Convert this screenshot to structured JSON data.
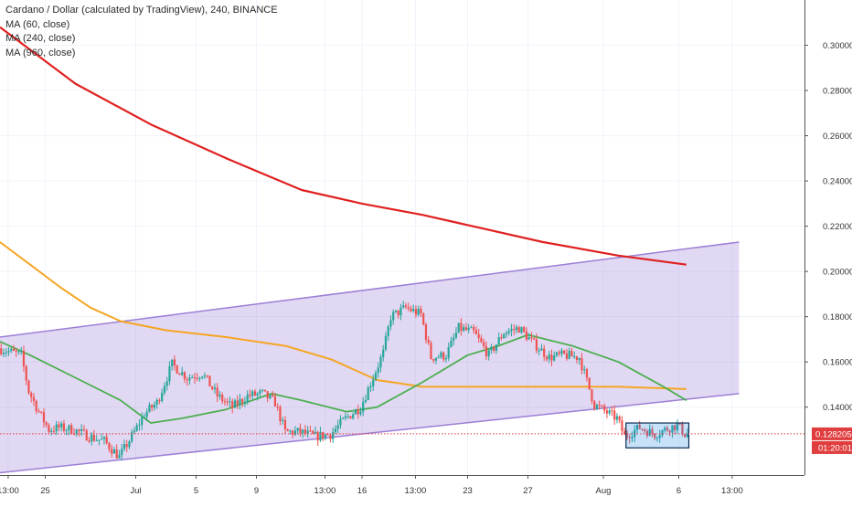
{
  "header": {
    "title": "Cardano / Dollar (calculated by TradingView), 240, BINANCE"
  },
  "chart_data": {
    "type": "candlestick",
    "symbol": "Cardano / Dollar",
    "interval": "240",
    "exchange": "BINANCE",
    "y_axis": {
      "range": [
        0.11,
        0.32
      ],
      "ticks": [
        0.14,
        0.16,
        0.18,
        0.2,
        0.22,
        0.24,
        0.26,
        0.28,
        0.3
      ],
      "tick_labels": [
        "0.140000",
        "0.160000",
        "0.180000",
        "0.200000",
        "0.220000",
        "0.240000",
        "0.260000",
        "0.280000",
        "0.300000"
      ]
    },
    "x_axis": {
      "range": [
        "Jun 22 00:00",
        "Aug 11 00:00"
      ],
      "ticks": [
        "Jun 22 13:00",
        "Jun 25",
        "Jul 1",
        "Jul 5",
        "Jul 9",
        "Jul 13 13:00",
        "Jul 16",
        "Jul 19 13:00",
        "Jul 23",
        "Jul 27",
        "Aug 1",
        "Aug 6",
        "Aug 9 13:00"
      ],
      "tick_labels": [
        "13:00",
        "25",
        "Jul",
        "5",
        "9",
        "13:00",
        "16",
        "13:00",
        "23",
        "27",
        "Aug",
        "6",
        "13:00"
      ]
    },
    "last_price": {
      "label": "0.128205",
      "countdown": "01:20:01",
      "value": 0.128205,
      "color": "#e03e3e"
    },
    "candle_colors": {
      "up": "#26a69a",
      "down": "#ef5350"
    },
    "indicators": [
      {
        "name": "MA (60, close)",
        "color": "#4caf50"
      },
      {
        "name": "MA (240, close)",
        "color": "#f5a623"
      },
      {
        "name": "MA (960, close)",
        "color": "#e02020"
      }
    ],
    "ma_960": [
      [
        "Jun 22 00:00",
        0.308
      ],
      [
        "Jun 27 00:00",
        0.283
      ],
      [
        "Jul 2 00:00",
        0.265
      ],
      [
        "Jul 7 00:00",
        0.25
      ],
      [
        "Jul 12 00:00",
        0.236
      ],
      [
        "Jul 16 00:00",
        0.23
      ],
      [
        "Jul 20 00:00",
        0.225
      ],
      [
        "Jul 24 00:00",
        0.219
      ],
      [
        "Jul 28 00:00",
        0.213
      ],
      [
        "Aug 2 00:00",
        0.207
      ],
      [
        "Aug 6 12:00",
        0.203
      ]
    ],
    "ma_240": [
      [
        "Jun 22 00:00",
        0.213
      ],
      [
        "Jun 24 00:00",
        0.203
      ],
      [
        "Jun 26 00:00",
        0.193
      ],
      [
        "Jun 28 00:00",
        0.184
      ],
      [
        "Jun 30 00:00",
        0.178
      ],
      [
        "Jul 3 00:00",
        0.174
      ],
      [
        "Jul 7 00:00",
        0.171
      ],
      [
        "Jul 11 00:00",
        0.167
      ],
      [
        "Jul 14 00:00",
        0.161
      ],
      [
        "Jul 17 00:00",
        0.152
      ],
      [
        "Jul 20 00:00",
        0.149
      ],
      [
        "Jul 26 00:00",
        0.149
      ],
      [
        "Aug 2 00:00",
        0.149
      ],
      [
        "Aug 6 12:00",
        0.148
      ]
    ],
    "ma_60": [
      [
        "Jun 22 00:00",
        0.169
      ],
      [
        "Jun 24 00:00",
        0.163
      ],
      [
        "Jun 27 00:00",
        0.153
      ],
      [
        "Jun 30 00:00",
        0.143
      ],
      [
        "Jul 2 00:00",
        0.133
      ],
      [
        "Jul 4 00:00",
        0.135
      ],
      [
        "Jul 7 00:00",
        0.139
      ],
      [
        "Jul 10 00:00",
        0.146
      ],
      [
        "Jul 12 00:00",
        0.143
      ],
      [
        "Jul 15 00:00",
        0.138
      ],
      [
        "Jul 17 00:00",
        0.14
      ],
      [
        "Jul 20 00:00",
        0.151
      ],
      [
        "Jul 23 00:00",
        0.163
      ],
      [
        "Jul 25 00:00",
        0.167
      ],
      [
        "Jul 27 00:00",
        0.172
      ],
      [
        "Jul 30 00:00",
        0.167
      ],
      [
        "Aug 2 00:00",
        0.16
      ],
      [
        "Aug 5 00:00",
        0.149
      ],
      [
        "Aug 6 12:00",
        0.143
      ]
    ],
    "price_path": [
      [
        "Jun 22 00:00",
        0.166
      ],
      [
        "Jun 23 12:00",
        0.163
      ],
      [
        "Jun 24 00:00",
        0.147
      ],
      [
        "Jun 24 16:00",
        0.138
      ],
      [
        "Jun 25 08:00",
        0.13
      ],
      [
        "Jun 26 00:00",
        0.131
      ],
      [
        "Jun 27 00:00",
        0.13
      ],
      [
        "Jun 28 00:00",
        0.127
      ],
      [
        "Jun 29 00:00",
        0.125
      ],
      [
        "Jun 30 00:00",
        0.118
      ],
      [
        "Jul 1 00:00",
        0.129
      ],
      [
        "Jul 1 16:00",
        0.137
      ],
      [
        "Jul 2 12:00",
        0.142
      ],
      [
        "Jul 3 12:00",
        0.159
      ],
      [
        "Jul 4 12:00",
        0.153
      ],
      [
        "Jul 5 12:00",
        0.155
      ],
      [
        "Jul 6 12:00",
        0.145
      ],
      [
        "Jul 7 12:00",
        0.14
      ],
      [
        "Jul 8 12:00",
        0.145
      ],
      [
        "Jul 9 12:00",
        0.146
      ],
      [
        "Jul 10 08:00",
        0.142
      ],
      [
        "Jul 11 00:00",
        0.129
      ],
      [
        "Jul 12 00:00",
        0.129
      ],
      [
        "Jul 13 00:00",
        0.127
      ],
      [
        "Jul 14 00:00",
        0.128
      ],
      [
        "Jul 15 00:00",
        0.135
      ],
      [
        "Jul 16 00:00",
        0.14
      ],
      [
        "Jul 16 12:00",
        0.148
      ],
      [
        "Jul 17 12:00",
        0.164
      ],
      [
        "Jul 18 00:00",
        0.18
      ],
      [
        "Jul 19 00:00",
        0.184
      ],
      [
        "Jul 20 00:00",
        0.181
      ],
      [
        "Jul 20 16:00",
        0.162
      ],
      [
        "Jul 21 16:00",
        0.163
      ],
      [
        "Jul 22 12:00",
        0.175
      ],
      [
        "Jul 23 12:00",
        0.173
      ],
      [
        "Jul 24 12:00",
        0.163
      ],
      [
        "Jul 25 12:00",
        0.173
      ],
      [
        "Jul 26 12:00",
        0.175
      ],
      [
        "Jul 27 12:00",
        0.168
      ],
      [
        "Jul 28 12:00",
        0.162
      ],
      [
        "Jul 29 12:00",
        0.163
      ],
      [
        "Jul 30 12:00",
        0.162
      ],
      [
        "Jul 31 12:00",
        0.141
      ],
      [
        "Aug 1 12:00",
        0.137
      ],
      [
        "Aug 2 00:00",
        0.135
      ],
      [
        "Aug 2 12:00",
        0.127
      ],
      [
        "Aug 3 12:00",
        0.131
      ],
      [
        "Aug 4 12:00",
        0.128
      ],
      [
        "Aug 5 12:00",
        0.131
      ],
      [
        "Aug 6 00:00",
        0.132
      ],
      [
        "Aug 6 12:00",
        0.128205
      ]
    ],
    "channel": {
      "color": "#9c7fd6",
      "upper": [
        [
          "Jun 22 00:00",
          0.171
        ],
        [
          "Aug 10 00:00",
          0.213
        ]
      ],
      "lower": [
        [
          "Jun 22 00:00",
          0.111
        ],
        [
          "Aug 10 00:00",
          0.146
        ]
      ]
    },
    "highlight_box": {
      "from": [
        "Aug 2 12:00",
        0.133
      ],
      "to": [
        "Aug 6 16:00",
        0.122
      ],
      "color": "#1e88e5"
    }
  }
}
